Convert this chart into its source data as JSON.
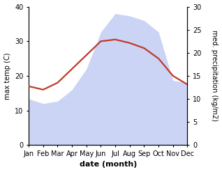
{
  "months": [
    "Jan",
    "Feb",
    "Mar",
    "Apr",
    "May",
    "Jun",
    "Jul",
    "Aug",
    "Sep",
    "Oct",
    "Nov",
    "Dec"
  ],
  "month_positions": [
    0,
    1,
    2,
    3,
    4,
    5,
    6,
    7,
    8,
    9,
    10,
    11
  ],
  "temperature": [
    17.0,
    16.0,
    18.0,
    22.0,
    26.0,
    30.0,
    30.5,
    29.5,
    28.0,
    25.0,
    20.0,
    17.5
  ],
  "precipitation": [
    10.0,
    9.0,
    9.5,
    12.0,
    16.5,
    24.5,
    28.5,
    28.0,
    27.0,
    24.5,
    14.0,
    13.5
  ],
  "temp_color": "#c0392b",
  "precip_color": "#b0bef0",
  "temp_ylim": [
    0,
    40
  ],
  "precip_ylim": [
    0,
    30
  ],
  "temp_yticks": [
    0,
    10,
    20,
    30,
    40
  ],
  "precip_yticks": [
    0,
    5,
    10,
    15,
    20,
    25,
    30
  ],
  "xlabel": "date (month)",
  "ylabel_left": "max temp (C)",
  "ylabel_right": "med. precipitation (kg/m2)",
  "bg_color": "#ffffff",
  "line_width": 1.6,
  "tick_fontsize": 7,
  "label_fontsize": 7,
  "xlabel_fontsize": 8
}
